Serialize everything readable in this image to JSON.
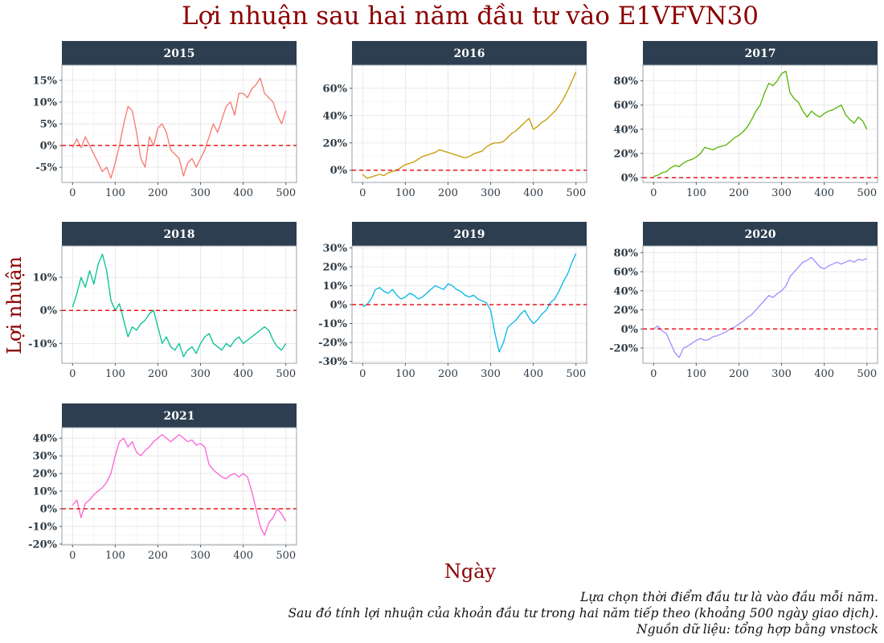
{
  "title": "Lợi nhuận sau hai năm đầu tư vào E1VFVN30",
  "xlabel": "Ngày",
  "ylabel": "Lợi nhuận",
  "caption": [
    "Lựa chọn thời điểm đầu tư là vào đầu mỗi năm.",
    "Sau đó tính lợi nhuận của khoản đầu tư trong hai năm tiếp theo (khoảng 500 ngày giao dịch).",
    "Nguồn dữ liệu: tổng hợp bằng vnstock"
  ],
  "colors": {
    "title": "#8b0000",
    "strip": "#2c3e50",
    "zero_line": "#e8161b",
    "grid": "#e6e6e6",
    "panel_border": "#9aa3ab"
  },
  "chart_data": [
    {
      "type": "line",
      "panel": "2015",
      "color": "#F8766D",
      "xlim": [
        -25,
        525
      ],
      "ylim": [
        -8.5,
        18.5
      ],
      "xticks": [
        0,
        100,
        200,
        300,
        400,
        500
      ],
      "xtick_labels": [
        "0",
        "100",
        "200",
        "300",
        "400",
        "500"
      ],
      "yticks": [
        -5,
        0,
        5,
        10,
        15
      ],
      "ytick_labels": [
        "-5%",
        "0%",
        "5%",
        "10%",
        "15%"
      ],
      "reference_line": 0,
      "x": [
        0,
        10,
        20,
        30,
        40,
        50,
        60,
        70,
        80,
        90,
        100,
        110,
        120,
        130,
        140,
        150,
        160,
        170,
        180,
        190,
        200,
        210,
        220,
        230,
        240,
        250,
        260,
        270,
        280,
        290,
        300,
        310,
        320,
        330,
        340,
        350,
        360,
        370,
        380,
        390,
        400,
        410,
        420,
        430,
        440,
        450,
        460,
        470,
        480,
        490,
        500
      ],
      "y": [
        -0.5,
        1.5,
        -0.5,
        2,
        0,
        -2,
        -4,
        -6,
        -5,
        -7.5,
        -4,
        0,
        5,
        9,
        8,
        3,
        -3,
        -5,
        2,
        0,
        4,
        5,
        3,
        -1,
        -2,
        -3,
        -7,
        -4,
        -3,
        -5,
        -3,
        -1,
        2,
        5,
        3,
        6,
        9,
        10,
        7,
        12,
        12,
        11,
        13,
        14,
        15.5,
        12,
        11,
        10,
        7,
        5,
        8
      ]
    },
    {
      "type": "line",
      "panel": "2016",
      "color": "#C49A00",
      "xlim": [
        -25,
        525
      ],
      "ylim": [
        -9,
        77
      ],
      "xticks": [
        0,
        100,
        200,
        300,
        400,
        500
      ],
      "xtick_labels": [
        "0",
        "100",
        "200",
        "300",
        "400",
        "500"
      ],
      "yticks": [
        0,
        20,
        40,
        60
      ],
      "ytick_labels": [
        "0%",
        "20%",
        "40%",
        "60%"
      ],
      "reference_line": 0,
      "x": [
        0,
        10,
        20,
        30,
        40,
        50,
        60,
        70,
        80,
        90,
        100,
        110,
        120,
        130,
        140,
        150,
        160,
        170,
        180,
        190,
        200,
        210,
        220,
        230,
        240,
        250,
        260,
        270,
        280,
        290,
        300,
        310,
        320,
        330,
        340,
        350,
        360,
        370,
        380,
        390,
        400,
        410,
        420,
        430,
        440,
        450,
        460,
        470,
        480,
        490,
        500
      ],
      "y": [
        -3,
        -6,
        -5,
        -4,
        -3,
        -4,
        -2,
        -1,
        0,
        2,
        4,
        5,
        6,
        8,
        10,
        11,
        12,
        13,
        15,
        14,
        13,
        12,
        11,
        10,
        9,
        10,
        12,
        13,
        14,
        17,
        19,
        20,
        20,
        21,
        24,
        27,
        29,
        32,
        35,
        38,
        30,
        32,
        35,
        37,
        40,
        43,
        47,
        52,
        58,
        65,
        72
      ]
    },
    {
      "type": "line",
      "panel": "2017",
      "color": "#53B400",
      "xlim": [
        -25,
        525
      ],
      "ylim": [
        -4,
        93
      ],
      "xticks": [
        0,
        100,
        200,
        300,
        400,
        500
      ],
      "xtick_labels": [
        "0",
        "100",
        "200",
        "300",
        "400",
        "500"
      ],
      "yticks": [
        0,
        20,
        40,
        60,
        80
      ],
      "ytick_labels": [
        "0%",
        "20%",
        "40%",
        "60%",
        "80%"
      ],
      "reference_line": 0,
      "x": [
        0,
        10,
        20,
        30,
        40,
        50,
        60,
        70,
        80,
        90,
        100,
        110,
        120,
        130,
        140,
        150,
        160,
        170,
        180,
        190,
        200,
        210,
        220,
        230,
        240,
        250,
        260,
        270,
        280,
        290,
        300,
        310,
        320,
        330,
        340,
        350,
        360,
        370,
        380,
        390,
        400,
        410,
        420,
        430,
        440,
        450,
        460,
        470,
        480,
        490,
        500
      ],
      "y": [
        1,
        2,
        4,
        5,
        8,
        10,
        9,
        12,
        14,
        15,
        17,
        20,
        25,
        24,
        23,
        25,
        26,
        27,
        30,
        33,
        35,
        38,
        42,
        48,
        55,
        60,
        70,
        78,
        76,
        80,
        86,
        88,
        70,
        65,
        62,
        55,
        50,
        55,
        52,
        50,
        53,
        55,
        56,
        58,
        60,
        52,
        48,
        45,
        50,
        47,
        40
      ]
    },
    {
      "type": "line",
      "panel": "2018",
      "color": "#00C094",
      "xlim": [
        -25,
        525
      ],
      "ylim": [
        -16,
        19.5
      ],
      "xticks": [
        0,
        100,
        200,
        300,
        400,
        500
      ],
      "xtick_labels": [
        "0",
        "100",
        "200",
        "300",
        "400",
        "500"
      ],
      "yticks": [
        -10,
        0,
        10
      ],
      "ytick_labels": [
        "-10%",
        "0%",
        "10%"
      ],
      "reference_line": 0,
      "x": [
        0,
        10,
        20,
        30,
        40,
        50,
        60,
        70,
        80,
        90,
        100,
        110,
        120,
        130,
        140,
        150,
        160,
        170,
        180,
        190,
        200,
        210,
        220,
        230,
        240,
        250,
        260,
        270,
        280,
        290,
        300,
        310,
        320,
        330,
        340,
        350,
        360,
        370,
        380,
        390,
        400,
        410,
        420,
        430,
        440,
        450,
        460,
        470,
        480,
        490,
        500
      ],
      "y": [
        1,
        5,
        10,
        7,
        12,
        8,
        14,
        17,
        12,
        3,
        0,
        2,
        -3,
        -8,
        -5,
        -6,
        -4,
        -3,
        -1,
        0,
        -5,
        -10,
        -8,
        -11,
        -12,
        -10,
        -14,
        -12,
        -11,
        -13,
        -10,
        -8,
        -7,
        -10,
        -11,
        -12,
        -10,
        -11,
        -9,
        -8,
        -10,
        -9,
        -8,
        -7,
        -6,
        -5,
        -6,
        -9,
        -11,
        -12,
        -10
      ]
    },
    {
      "type": "line",
      "panel": "2019",
      "color": "#00B6EB",
      "xlim": [
        -25,
        525
      ],
      "ylim": [
        -31,
        31
      ],
      "xticks": [
        0,
        100,
        200,
        300,
        400,
        500
      ],
      "xtick_labels": [
        "0",
        "100",
        "200",
        "300",
        "400",
        "500"
      ],
      "yticks": [
        -30,
        -20,
        -10,
        0,
        10,
        20,
        30
      ],
      "ytick_labels": [
        "-30%",
        "-20%",
        "-10%",
        "0%",
        "10%",
        "20%",
        "30%"
      ],
      "reference_line": 0,
      "x": [
        0,
        10,
        20,
        30,
        40,
        50,
        60,
        70,
        80,
        90,
        100,
        110,
        120,
        130,
        140,
        150,
        160,
        170,
        180,
        190,
        200,
        210,
        220,
        230,
        240,
        250,
        260,
        270,
        280,
        290,
        300,
        310,
        320,
        330,
        340,
        350,
        360,
        370,
        380,
        390,
        400,
        410,
        420,
        430,
        440,
        450,
        460,
        470,
        480,
        490,
        500
      ],
      "y": [
        -1,
        0,
        3,
        8,
        9,
        7,
        6,
        8,
        5,
        3,
        4,
        6,
        5,
        3,
        4,
        6,
        8,
        10,
        9,
        8,
        11,
        10,
        8,
        7,
        5,
        4,
        5,
        3,
        2,
        1,
        -3,
        -15,
        -25,
        -20,
        -12,
        -10,
        -8,
        -5,
        -3,
        -7,
        -10,
        -8,
        -5,
        -3,
        1,
        3,
        7,
        12,
        16,
        22,
        27
      ]
    },
    {
      "type": "line",
      "panel": "2020",
      "color": "#A58AFF",
      "xlim": [
        -25,
        525
      ],
      "ylim": [
        -36,
        87
      ],
      "xticks": [
        0,
        100,
        200,
        300,
        400,
        500
      ],
      "xtick_labels": [
        "0",
        "100",
        "200",
        "300",
        "400",
        "500"
      ],
      "yticks": [
        -20,
        0,
        20,
        40,
        60,
        80
      ],
      "ytick_labels": [
        "-20%",
        "0%",
        "20%",
        "40%",
        "60%",
        "80%"
      ],
      "reference_line": 0,
      "x": [
        0,
        10,
        20,
        30,
        40,
        50,
        60,
        70,
        80,
        90,
        100,
        110,
        120,
        130,
        140,
        150,
        160,
        170,
        180,
        190,
        200,
        210,
        220,
        230,
        240,
        250,
        260,
        270,
        280,
        290,
        300,
        310,
        320,
        330,
        340,
        350,
        360,
        370,
        380,
        390,
        400,
        410,
        420,
        430,
        440,
        450,
        460,
        470,
        480,
        490,
        500
      ],
      "y": [
        0,
        3,
        -2,
        -5,
        -15,
        -25,
        -30,
        -20,
        -18,
        -15,
        -12,
        -10,
        -12,
        -11,
        -8,
        -7,
        -5,
        -3,
        0,
        2,
        5,
        8,
        12,
        15,
        20,
        25,
        30,
        35,
        33,
        37,
        40,
        45,
        55,
        60,
        65,
        70,
        72,
        75,
        70,
        65,
        63,
        66,
        68,
        70,
        68,
        70,
        72,
        70,
        73,
        72,
        74
      ]
    },
    {
      "type": "line",
      "panel": "2021",
      "color": "#FB61D7",
      "xlim": [
        -25,
        525
      ],
      "ylim": [
        -20.5,
        46
      ],
      "xticks": [
        0,
        100,
        200,
        300,
        400,
        500
      ],
      "xtick_labels": [
        "0",
        "100",
        "200",
        "300",
        "400",
        "500"
      ],
      "yticks": [
        -20,
        -10,
        0,
        10,
        20,
        30,
        40
      ],
      "ytick_labels": [
        "-20%",
        "-10%",
        "0%",
        "10%",
        "20%",
        "30%",
        "40%"
      ],
      "reference_line": 0,
      "x": [
        0,
        10,
        20,
        30,
        40,
        50,
        60,
        70,
        80,
        90,
        100,
        110,
        120,
        130,
        140,
        150,
        160,
        170,
        180,
        190,
        200,
        210,
        220,
        230,
        240,
        250,
        260,
        270,
        280,
        290,
        300,
        310,
        320,
        330,
        340,
        350,
        360,
        370,
        380,
        390,
        400,
        410,
        420,
        430,
        440,
        450,
        460,
        470,
        480,
        490,
        500
      ],
      "y": [
        2,
        5,
        -5,
        3,
        5,
        8,
        10,
        12,
        15,
        20,
        30,
        38,
        40,
        35,
        38,
        32,
        30,
        33,
        35,
        38,
        40,
        42,
        40,
        38,
        40,
        42,
        40,
        38,
        39,
        36,
        37,
        35,
        25,
        22,
        20,
        18,
        17,
        19,
        20,
        18,
        20,
        18,
        10,
        0,
        -10,
        -15,
        -8,
        -5,
        0,
        -3,
        -7
      ]
    }
  ]
}
